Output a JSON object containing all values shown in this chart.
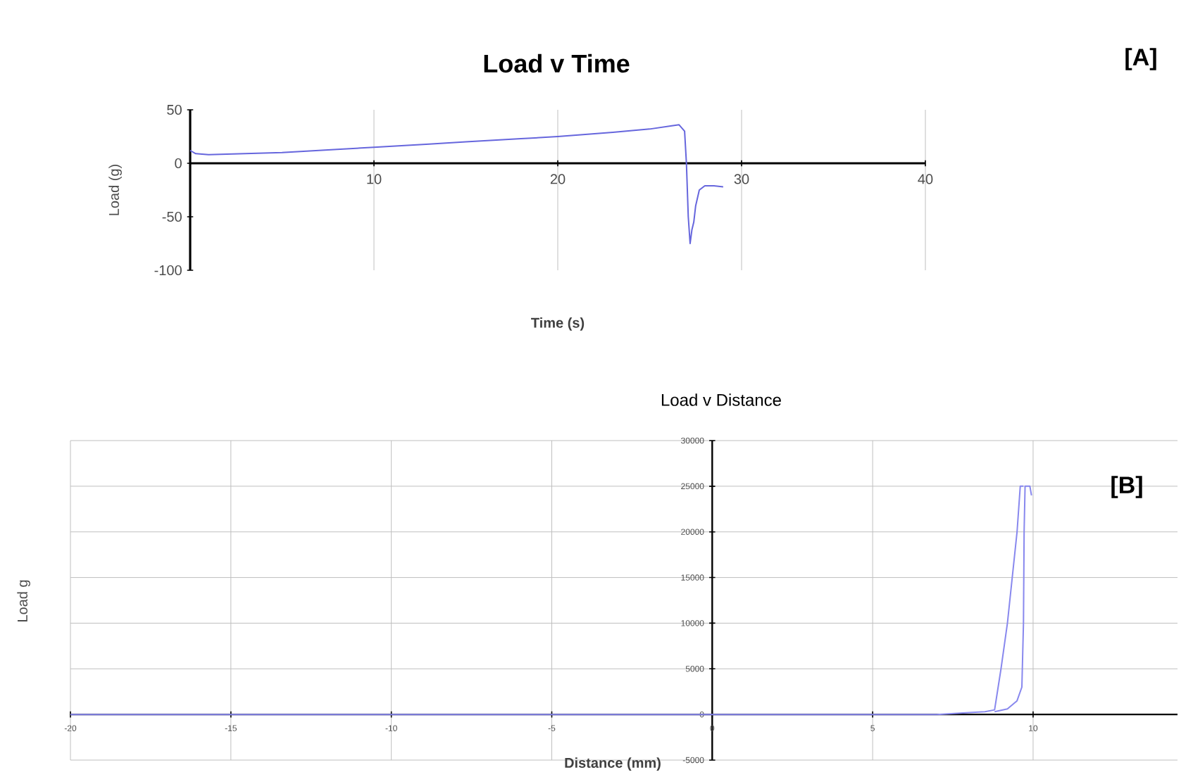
{
  "chart_data": [
    {
      "type": "line",
      "title": "Load v Time",
      "xlabel": "Time (s)",
      "ylabel": "Load (g)",
      "annotations": [
        "[A]"
      ],
      "xlim": [
        0,
        40
      ],
      "ylim": [
        -100,
        50
      ],
      "xticks": [
        {
          "value": 0,
          "label": null
        },
        10,
        20,
        30,
        40
      ],
      "yticks": [
        -100,
        -50,
        0,
        50
      ],
      "grid": "x",
      "marker": "none",
      "line_style": "solid",
      "series": [
        {
          "color": "#6666dd",
          "x": [
            0,
            0.3,
            1,
            3,
            5,
            8,
            10,
            13,
            15,
            18,
            20,
            23,
            25,
            26.2,
            26.6,
            26.9,
            27.0,
            27.1,
            27.2,
            27.3,
            27.4,
            27.5,
            27.7,
            28,
            28.5,
            29
          ],
          "values": [
            12,
            9,
            8,
            9,
            10,
            13,
            15,
            18,
            20,
            23,
            25,
            29,
            32,
            35,
            36,
            30,
            0,
            -50,
            -75,
            -62,
            -55,
            -40,
            -25,
            -21,
            -21,
            -22
          ]
        }
      ]
    },
    {
      "type": "line",
      "title": "Load v Distance",
      "xlabel": "Distance (mm)",
      "ylabel": "Load g",
      "annotations": [
        "[B]"
      ],
      "xlim": [
        -20,
        14.5
      ],
      "ylim": [
        -5000,
        30000
      ],
      "xticks": [
        -20,
        -15,
        -10,
        -5,
        0,
        5,
        10
      ],
      "yticks": [
        -5000,
        0,
        5000,
        10000,
        15000,
        20000,
        25000,
        30000
      ],
      "grid": true,
      "marker": "none",
      "line_style": "solid",
      "series": [
        {
          "color": "#8888ee",
          "x": [
            -20,
            -10,
            0,
            5,
            7,
            8,
            8.5,
            8.8,
            9.0,
            9.2,
            9.35,
            9.5,
            9.6,
            9.7
          ],
          "values": [
            0,
            0,
            0,
            0,
            0,
            200,
            300,
            500,
            5000,
            10000,
            15000,
            20000,
            25000,
            25000
          ]
        },
        {
          "color": "#8888ee",
          "x": [
            8.8,
            9.2,
            9.5,
            9.65,
            9.7,
            9.72,
            9.75,
            9.8,
            9.9,
            9.95
          ],
          "values": [
            300,
            600,
            1500,
            3000,
            10000,
            20000,
            25000,
            25000,
            25000,
            24000
          ]
        }
      ]
    }
  ]
}
